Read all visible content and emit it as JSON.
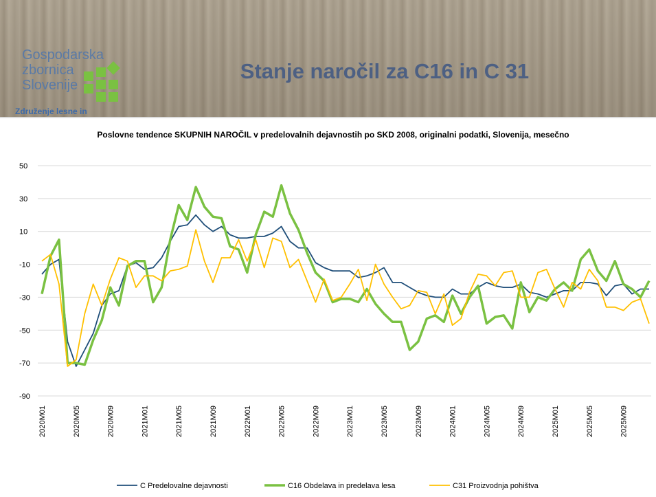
{
  "header": {
    "logo_lines": [
      "Gospodarska",
      "zbornica",
      "Slovenije"
    ],
    "association": "Združenje lesne in",
    "title": "Stanje naročil za C16 in C 31"
  },
  "chart_data": {
    "type": "line",
    "title": "Poslovne tendence SKUPNIH NAROČIL v predelovalnih dejavnostih po SKD 2008,  originalni podatki, Slovenija, mesečno",
    "categories": [
      "2020M01",
      null,
      null,
      null,
      "2020M05",
      null,
      null,
      null,
      "2020M09",
      null,
      null,
      null,
      "2021M01",
      null,
      null,
      null,
      "2021M05",
      null,
      null,
      null,
      "2021M09",
      null,
      null,
      null,
      "2022M01",
      null,
      null,
      null,
      "2022M05",
      null,
      null,
      null,
      "2022M09",
      null,
      null,
      null,
      "2023M01",
      null,
      null,
      null,
      "2023M05",
      null,
      null,
      null,
      "2023M09",
      null,
      null,
      null,
      "2024M01",
      null,
      null,
      null,
      "2024M05",
      null,
      null,
      null,
      "2024M09",
      null,
      null,
      null,
      "2025M01",
      null,
      null,
      null,
      "2025M05",
      null,
      null,
      null,
      "2025M09",
      null,
      null,
      null
    ],
    "series": [
      {
        "name": "C Predelovalne dejavnosti",
        "color": "#1f4e79",
        "width": 1.8,
        "values": [
          -16,
          -10,
          -7,
          -57,
          -72,
          -62,
          -52,
          -35,
          -28,
          -26,
          -11,
          -9,
          -13,
          -12,
          -6,
          4,
          13,
          14,
          20,
          14,
          10,
          13,
          8,
          6,
          6,
          7,
          7,
          9,
          13,
          4,
          0,
          0,
          -9,
          -12,
          -14,
          -14,
          -14,
          -18,
          -17,
          -15,
          -12,
          -21,
          -21,
          -24,
          -27,
          -29,
          -30,
          -30,
          -25,
          -28,
          -28,
          -24,
          -21,
          -23,
          -24,
          -24,
          -22,
          -27,
          -28,
          -30,
          -28,
          -26,
          -26,
          -21,
          -21,
          -22,
          -29,
          -23,
          -22,
          -28,
          -25,
          -25
        ]
      },
      {
        "name": "C16 Obdelava in predelava lesa",
        "color": "#7ac142",
        "width": 3.5,
        "values": [
          -28,
          -5,
          5,
          -70,
          -70,
          -71,
          -56,
          -44,
          -24,
          -35,
          -11,
          -8,
          -8,
          -33,
          -24,
          5,
          26,
          17,
          37,
          25,
          19,
          18,
          1,
          -1,
          -15,
          8,
          22,
          19,
          38,
          21,
          11,
          -3,
          -15,
          -20,
          -33,
          -31,
          -31,
          -33,
          -25,
          -34,
          -40,
          -45,
          -45,
          -62,
          -57,
          -43,
          -41,
          -45,
          -29,
          -40,
          -30,
          -23,
          -46,
          -42,
          -41,
          -49,
          -21,
          -39,
          -30,
          -32,
          -25,
          -21,
          -26,
          -7,
          -1,
          -14,
          -20,
          -8,
          -22,
          -25,
          -30,
          -20
        ]
      },
      {
        "name": "C31 Proizvodnja pohištva",
        "color": "#ffc000",
        "width": 1.8,
        "values": [
          -8,
          -4,
          -22,
          -72,
          -68,
          -40,
          -22,
          -35,
          -19,
          -6,
          -8,
          -24,
          -17,
          -17,
          -20,
          -14,
          -13,
          -11,
          11,
          -8,
          -21,
          -6,
          -6,
          5,
          -8,
          5,
          -12,
          6,
          4,
          -12,
          -7,
          -20,
          -33,
          -19,
          -32,
          -30,
          -22,
          -13,
          -32,
          -10,
          -22,
          -30,
          -37,
          -35,
          -26,
          -27,
          -40,
          -28,
          -47,
          -43,
          -27,
          -16,
          -17,
          -23,
          -15,
          -14,
          -30,
          -30,
          -15,
          -13,
          -25,
          -36,
          -21,
          -25,
          -13,
          -20,
          -36,
          -36,
          -38,
          -33,
          -31,
          -46
        ]
      }
    ],
    "ylim": [
      -90,
      50
    ],
    "yticks": [
      -90,
      -70,
      -50,
      -30,
      -10,
      10,
      30,
      50
    ],
    "grid": true,
    "legend": "bottom"
  }
}
